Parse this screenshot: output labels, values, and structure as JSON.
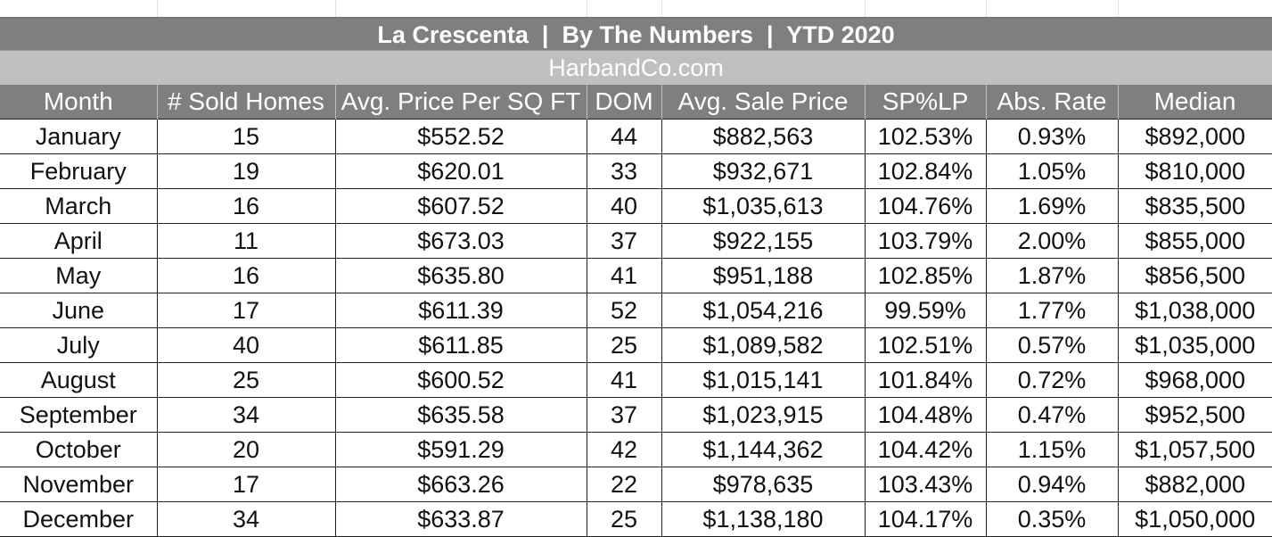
{
  "title": "La Crescenta  |  By The Numbers  |  YTD 2020",
  "subtitle": "HarbandCo.com",
  "columns": [
    "Month",
    "# Sold Homes",
    "Avg. Price Per SQ FT",
    "DOM",
    "Avg. Sale Price",
    "SP%LP",
    "Abs. Rate",
    "Median"
  ],
  "rows": [
    [
      "January",
      "15",
      "$552.52",
      "44",
      "$882,563",
      "102.53%",
      "0.93%",
      "$892,000"
    ],
    [
      "February",
      "19",
      "$620.01",
      "33",
      "$932,671",
      "102.84%",
      "1.05%",
      "$810,000"
    ],
    [
      "March",
      "16",
      "$607.52",
      "40",
      "$1,035,613",
      "104.76%",
      "1.69%",
      "$835,500"
    ],
    [
      "April",
      "11",
      "$673.03",
      "37",
      "$922,155",
      "103.79%",
      "2.00%",
      "$855,000"
    ],
    [
      "May",
      "16",
      "$635.80",
      "41",
      "$951,188",
      "102.85%",
      "1.87%",
      "$856,500"
    ],
    [
      "June",
      "17",
      "$611.39",
      "52",
      "$1,054,216",
      "99.59%",
      "1.77%",
      "$1,038,000"
    ],
    [
      "July",
      "40",
      "$611.85",
      "25",
      "$1,089,582",
      "102.51%",
      "0.57%",
      "$1,035,000"
    ],
    [
      "August",
      "25",
      "$600.52",
      "41",
      "$1,015,141",
      "101.84%",
      "0.72%",
      "$968,000"
    ],
    [
      "September",
      "34",
      "$635.58",
      "37",
      "$1,023,915",
      "104.48%",
      "0.47%",
      "$952,500"
    ],
    [
      "October",
      "20",
      "$591.29",
      "42",
      "$1,144,362",
      "104.42%",
      "1.15%",
      "$1,057,500"
    ],
    [
      "November",
      "17",
      "$663.26",
      "22",
      "$978,635",
      "103.43%",
      "0.94%",
      "$882,000"
    ],
    [
      "December",
      "34",
      "$633.87",
      "25",
      "$1,138,180",
      "104.17%",
      "0.35%",
      "$1,050,000"
    ]
  ]
}
